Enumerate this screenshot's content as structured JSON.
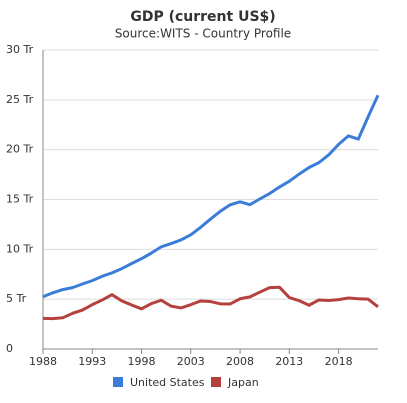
{
  "chart_data": {
    "type": "line",
    "title": "GDP (current US$)",
    "subtitle": "Source:WITS - Country Profile",
    "x": [
      1988,
      1989,
      1990,
      1991,
      1992,
      1993,
      1994,
      1995,
      1996,
      1997,
      1998,
      1999,
      2000,
      2001,
      2002,
      2003,
      2004,
      2005,
      2006,
      2007,
      2008,
      2009,
      2010,
      2011,
      2012,
      2013,
      2014,
      2015,
      2016,
      2017,
      2018,
      2019,
      2020,
      2021,
      2022
    ],
    "series": [
      {
        "name": "United States",
        "color": "#3a7dd8",
        "values": [
          5.24,
          5.64,
          5.96,
          6.16,
          6.52,
          6.86,
          7.29,
          7.64,
          8.07,
          8.58,
          9.06,
          9.63,
          10.25,
          10.58,
          10.94,
          11.46,
          12.21,
          13.04,
          13.82,
          14.47,
          14.77,
          14.48,
          15.05,
          15.6,
          16.25,
          16.84,
          17.55,
          18.21,
          18.7,
          19.48,
          20.53,
          21.38,
          21.06,
          23.3,
          25.46
        ]
      },
      {
        "name": "Japan",
        "color": "#b5413f",
        "values": [
          3.07,
          3.05,
          3.13,
          3.58,
          3.91,
          4.45,
          4.91,
          5.45,
          4.83,
          4.41,
          4.03,
          4.56,
          4.89,
          4.3,
          4.12,
          4.45,
          4.82,
          4.76,
          4.53,
          4.52,
          5.04,
          5.23,
          5.7,
          6.16,
          6.2,
          5.16,
          4.85,
          4.39,
          4.92,
          4.87,
          4.95,
          5.12,
          5.04,
          5.0,
          4.23
        ]
      }
    ],
    "xlim": [
      1988,
      2022
    ],
    "xticks": [
      1988,
      1993,
      1998,
      2003,
      2008,
      2013,
      2018
    ],
    "ylim": [
      0,
      30
    ],
    "yticks": [
      0,
      {
        "value": 5,
        "label": "5 Tr"
      },
      {
        "value": 10,
        "label": "10 Tr"
      },
      {
        "value": 15,
        "label": "15 Tr"
      },
      {
        "value": 20,
        "label": "20 Tr"
      },
      {
        "value": 25,
        "label": "25 Tr"
      },
      {
        "value": 30,
        "label": "30 Tr"
      }
    ],
    "grid": true
  }
}
